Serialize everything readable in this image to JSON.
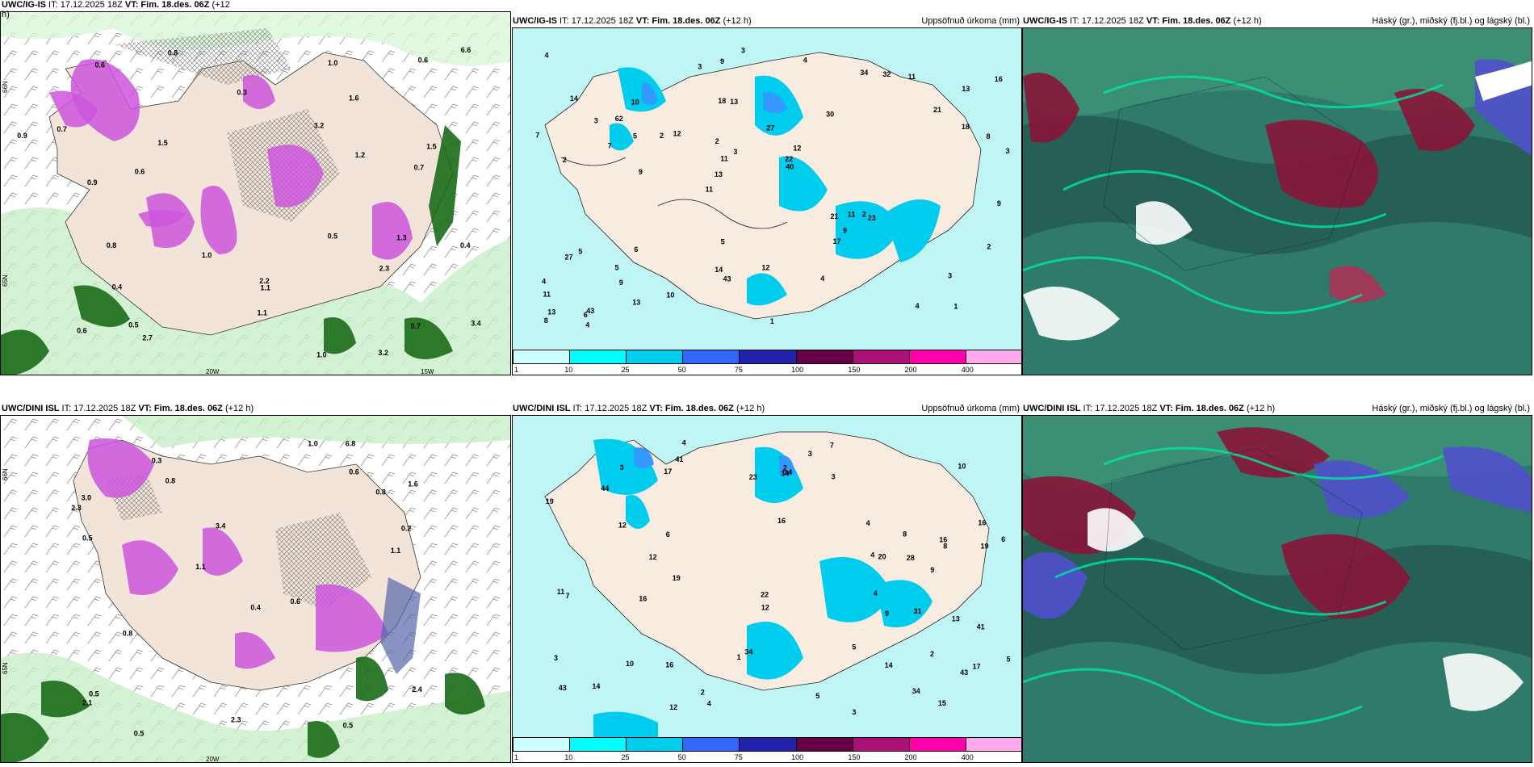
{
  "rows": [
    {
      "left": {
        "title_model": "UWC/IG-IS",
        "title_text": " IT: 17.12.2025 18Z ",
        "title_vt": "VT: Fim. 18.des. 06Z",
        "title_tail": " (+12",
        "title_tail2": "h)"
      },
      "middle": {
        "title_model": "UWC/IG-IS",
        "title_text": " IT: 17.12.2025 18Z ",
        "title_vt": "VT: Fim. 18.des. 06Z",
        "title_tail": " (+12 h)",
        "title_right": "Uppsöfnuð úrkoma (mm)"
      },
      "right": {
        "title_model": "UWC/IG-IS",
        "title_text": " IT: 17.12.2025 18Z ",
        "title_vt": "VT: Fim. 18.des. 06Z",
        "title_tail": " (+12 h)",
        "title_right": "Háský (gr.), miðský (fj.bl.) og lágský (bl.)"
      }
    },
    {
      "left": {
        "title_model": "UWC/DINI ISL",
        "title_text": " IT: 17.12.2025 18Z ",
        "title_vt": "VT: Fim. 18.des. 06Z",
        "title_tail": " (+12 h)"
      },
      "middle": {
        "title_model": "UWC/DINI ISL",
        "title_text": " IT: 17.12.2025 18Z ",
        "title_vt": "VT: Fim. 18.des. 06Z",
        "title_tail": " (+12 h)",
        "title_right": "Uppsöfnuð úrkoma (mm)"
      },
      "right": {
        "title_model": "UWC/DINI ISL",
        "title_text": " IT: 17.12.2025 18Z ",
        "title_vt": "VT: Fim. 18.des. 06Z",
        "title_tail": " (+12 h)",
        "title_right": "Háský (gr.), miðský (fj.bl.) og lágský (bl.)"
      }
    }
  ],
  "colorbar": {
    "colors": [
      "#ccffff",
      "#00ffff",
      "#00ccee",
      "#3366ff",
      "#2222aa",
      "#660044",
      "#aa1177",
      "#ff00aa",
      "#ffaaee"
    ],
    "ticks": [
      "1",
      "10",
      "25",
      "50",
      "75",
      "100",
      "150",
      "200",
      "400"
    ]
  },
  "axis_labels": {
    "lat66": "66N",
    "lat65": "65N",
    "lon20": "20W",
    "lon15": "15W"
  },
  "precip_top": [
    "1",
    "2",
    "13",
    "11",
    "30",
    "43",
    "18",
    "27",
    "5",
    "12",
    "11",
    "9",
    "13",
    "12",
    "23",
    "14",
    "9",
    "3",
    "21",
    "18",
    "13",
    "14",
    "11",
    "10",
    "34",
    "6",
    "4",
    "3",
    "2",
    "1",
    "2",
    "7",
    "17",
    "13",
    "8",
    "22",
    "13",
    "43",
    "40",
    "27",
    "21",
    "16",
    "9",
    "4",
    "5",
    "4",
    "8",
    "12",
    "11",
    "3",
    "9",
    "7",
    "62",
    "32",
    "6",
    "4",
    "3",
    "3",
    "2",
    "5",
    "10",
    "11",
    "5",
    "4",
    "4",
    "3",
    "9",
    "2"
  ],
  "precip_bottom": [
    "2",
    "16",
    "17",
    "16",
    "43",
    "41",
    "16",
    "16",
    "10",
    "12",
    "19",
    "19",
    "9",
    "4",
    "3",
    "44",
    "43",
    "17",
    "34",
    "8",
    "11",
    "7",
    "5",
    "4",
    "2",
    "1",
    "3",
    "3",
    "4",
    "5",
    "16",
    "14",
    "12",
    "22",
    "13",
    "34",
    "20",
    "23",
    "15",
    "19",
    "31",
    "28",
    "34",
    "12",
    "41",
    "9",
    "14",
    "7",
    "6",
    "8",
    "10",
    "12",
    "14",
    "6",
    "5",
    "4",
    "4",
    "3",
    "3",
    "2"
  ],
  "gfs_top_values": [
    "0.4",
    "3.2",
    "1.1",
    "0.6",
    "2.2",
    "1.5",
    "0.8",
    "1.6",
    "1.0",
    "0.7",
    "0.5",
    "0.6",
    "0.9",
    "1.2",
    "2.7",
    "0.6",
    "0.4",
    "0.5",
    "1.0",
    "0.3",
    "0.7",
    "1.3",
    "0.7",
    "0.9",
    "6.6",
    "3.2",
    "2.3",
    "1.0",
    "0.8",
    "0.6",
    "1.1",
    "1.5",
    "3.4"
  ],
  "gfs_bottom_values": [
    "0.3",
    "0.2",
    "0.5",
    "2.3",
    "1.6",
    "2.1",
    "2.4",
    "0.4",
    "0.6",
    "0.8",
    "0.5",
    "6.8",
    "0.8",
    "0.5",
    "2.3",
    "0.6",
    "1.1",
    "0.8",
    "3.0",
    "3.4",
    "1.0",
    "0.5",
    "1.1"
  ]
}
